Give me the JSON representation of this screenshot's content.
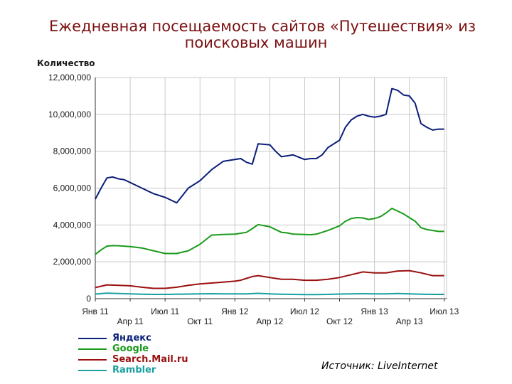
{
  "title": {
    "line1": "Ежедневная посещаемость сайтов «Путешествия»  из",
    "line2": "поисковых машин"
  },
  "source": "Источник: LiveInternet",
  "colors": {
    "background": "#ffffff",
    "title": "#7a0f10",
    "grid": "#c8c8c8",
    "axis": "#333333"
  },
  "chart_data": {
    "type": "line",
    "title": "Ежедневная посещаемость сайтов «Путешествия»  из поисковых машин",
    "ylabel": "Количество",
    "xlabel": "",
    "ylim": [
      0,
      12000000
    ],
    "yticks": [
      0,
      2000000,
      4000000,
      6000000,
      8000000,
      10000000,
      12000000
    ],
    "ytick_labels": [
      "0",
      "2,000,000",
      "4,000,000",
      "6,000,000",
      "8,000,000",
      "10,000,000",
      "12,000,000"
    ],
    "xlim": [
      0,
      30.2
    ],
    "xtick_labels": [
      {
        "pos": 0,
        "label": "Янв 11",
        "row": 1
      },
      {
        "pos": 3,
        "label": "Апр 11",
        "row": 2
      },
      {
        "pos": 6,
        "label": "Июл 11",
        "row": 1
      },
      {
        "pos": 9,
        "label": "Окт 11",
        "row": 2
      },
      {
        "pos": 12,
        "label": "Янв 12",
        "row": 1
      },
      {
        "pos": 15,
        "label": "Апр 12",
        "row": 2
      },
      {
        "pos": 18,
        "label": "Июл 12",
        "row": 1
      },
      {
        "pos": 21,
        "label": "Окт 12",
        "row": 2
      },
      {
        "pos": 24,
        "label": "Янв 13",
        "row": 1
      },
      {
        "pos": 27,
        "label": "Апр 13",
        "row": 2
      },
      {
        "pos": 30,
        "label": "Июл 13",
        "row": 1
      }
    ],
    "grid": true,
    "legend": "bottom-left",
    "series": [
      {
        "name": "Яндекс",
        "color": "#0a1f7a",
        "x": [
          0,
          0.5,
          1,
          1.5,
          2,
          2.5,
          3,
          4,
          5,
          6,
          7,
          8,
          9,
          10,
          11,
          12,
          12.5,
          13,
          13.5,
          14,
          15,
          15.5,
          16,
          16.5,
          17,
          18,
          18.5,
          19,
          19.5,
          20,
          21,
          21.5,
          22,
          22.5,
          23,
          23.5,
          24,
          24.5,
          25,
          25.5,
          26,
          26.5,
          27,
          27.5,
          28,
          28.5,
          29,
          29.5,
          30
        ],
        "values": [
          5400000,
          6000000,
          6550000,
          6600000,
          6500000,
          6450000,
          6300000,
          6000000,
          5700000,
          5500000,
          5200000,
          6000000,
          6400000,
          7000000,
          7450000,
          7550000,
          7600000,
          7400000,
          7300000,
          8400000,
          8350000,
          8000000,
          7700000,
          7750000,
          7800000,
          7550000,
          7600000,
          7600000,
          7800000,
          8200000,
          8600000,
          9300000,
          9700000,
          9900000,
          10000000,
          9900000,
          9850000,
          9900000,
          10000000,
          11400000,
          11300000,
          11050000,
          11000000,
          10600000,
          9500000,
          9300000,
          9150000,
          9200000,
          9200000
        ]
      },
      {
        "name": "Google",
        "color": "#1a9a1a",
        "x": [
          0,
          0.5,
          1,
          1.5,
          2,
          3,
          4,
          5,
          6,
          7,
          8,
          9,
          10,
          11,
          12,
          12.5,
          13,
          13.5,
          14,
          15,
          15.5,
          16,
          16.5,
          17,
          18,
          18.5,
          19,
          19.5,
          20,
          21,
          21.5,
          22,
          22.5,
          23,
          23.5,
          24,
          24.5,
          25,
          25.5,
          26,
          26.5,
          27,
          27.5,
          28,
          28.5,
          29,
          29.5,
          30
        ],
        "values": [
          2400000,
          2650000,
          2850000,
          2880000,
          2870000,
          2830000,
          2750000,
          2600000,
          2450000,
          2450000,
          2600000,
          2950000,
          3450000,
          3480000,
          3500000,
          3550000,
          3600000,
          3800000,
          4020000,
          3900000,
          3750000,
          3600000,
          3570000,
          3500000,
          3480000,
          3470000,
          3500000,
          3600000,
          3700000,
          3950000,
          4200000,
          4350000,
          4400000,
          4380000,
          4300000,
          4350000,
          4450000,
          4650000,
          4900000,
          4750000,
          4600000,
          4400000,
          4200000,
          3850000,
          3750000,
          3700000,
          3650000,
          3650000
        ]
      },
      {
        "name": "Search.Mail.ru",
        "color": "#9a1010",
        "x": [
          0,
          1,
          2,
          3,
          4,
          5,
          6,
          7,
          8,
          9,
          10,
          11,
          12,
          12.5,
          13,
          13.5,
          14,
          15,
          16,
          17,
          18,
          19,
          20,
          21,
          22,
          23,
          24,
          25,
          26,
          27,
          28,
          29,
          30
        ],
        "values": [
          600000,
          750000,
          720000,
          700000,
          620000,
          560000,
          560000,
          620000,
          720000,
          800000,
          850000,
          900000,
          950000,
          1000000,
          1100000,
          1200000,
          1250000,
          1150000,
          1050000,
          1050000,
          1000000,
          1000000,
          1050000,
          1150000,
          1300000,
          1450000,
          1400000,
          1400000,
          1500000,
          1520000,
          1400000,
          1250000,
          1250000
        ]
      },
      {
        "name": "Rambler",
        "color": "#1aa0a0",
        "x": [
          0,
          1,
          2,
          3,
          4,
          5,
          6,
          7,
          8,
          9,
          10,
          11,
          12,
          13,
          14,
          15,
          16,
          17,
          18,
          19,
          20,
          21,
          22,
          23,
          24,
          25,
          26,
          27,
          28,
          29,
          30
        ],
        "values": [
          250000,
          300000,
          280000,
          260000,
          240000,
          230000,
          230000,
          240000,
          250000,
          260000,
          270000,
          260000,
          260000,
          260000,
          290000,
          260000,
          240000,
          230000,
          220000,
          220000,
          230000,
          250000,
          260000,
          270000,
          260000,
          260000,
          280000,
          260000,
          240000,
          230000,
          230000
        ]
      }
    ]
  }
}
